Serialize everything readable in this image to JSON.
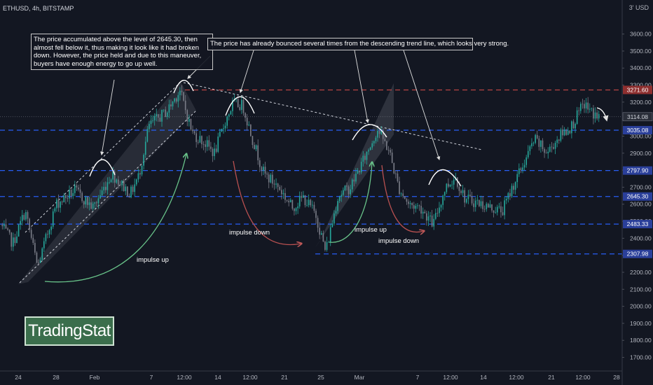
{
  "header": {
    "symbol_line": "ETHUSD, 4h, BITSTAMP",
    "currency_label": "3' USD"
  },
  "brand": {
    "logo_text": "TradingStat"
  },
  "annotations": {
    "note_1": "The price accumulated above the level of 2645.30, then almost fell below it, thus making it look like it had broken down. However, the price held and due to this maneuver, buyers have enough energy to go up well.",
    "note_2": "The price has already bounced several times from the descending trend line, which looks very strong.",
    "impulse_labels": [
      {
        "id": "impulse-up-1",
        "text": "impulse up"
      },
      {
        "id": "impulse-down-1",
        "text": "impulse down"
      },
      {
        "id": "impulse-up-2",
        "text": "impulse up"
      },
      {
        "id": "impulse-down-2",
        "text": "impulse down"
      }
    ]
  },
  "chart_data": {
    "type": "candlestick",
    "instrument": "ETHUSD",
    "timeframe": "4h",
    "exchange": "BITSTAMP",
    "y_axis": {
      "ylim": [
        1620,
        3800
      ],
      "ticks": [
        1700,
        1800,
        1900,
        2000,
        2100,
        2200,
        2300,
        2400,
        2500,
        2600,
        2700,
        2800,
        2900,
        3000,
        3100,
        3200,
        3300,
        3400,
        3500,
        3600
      ],
      "tick_labels": [
        "1700.00",
        "1800.00",
        "1900.00",
        "2000.00",
        "2100.00",
        "2200.00",
        "2300.00",
        "2400.00",
        "2500.00",
        "2600.00",
        "2700.00",
        "2800.00",
        "2900.00",
        "3000.00",
        "3100.00",
        "3200.00",
        "3300.00",
        "3400.00",
        "3500.00",
        "3600.00"
      ]
    },
    "x_axis": {
      "tick_labels": [
        "24",
        "28",
        "Feb",
        "7",
        "12:00",
        "14",
        "12:00",
        "21",
        "25",
        "Mar",
        "7",
        "12:00",
        "14",
        "12:00",
        "21",
        "12:00",
        "28"
      ]
    },
    "levels": [
      {
        "value": 3271.6,
        "label": "3271.60",
        "color": "#ef5350"
      },
      {
        "value": 3035.08,
        "label": "3035.08",
        "color": "#2962ff"
      },
      {
        "value": 2797.9,
        "label": "2797.90",
        "color": "#2962ff"
      },
      {
        "value": 2645.3,
        "label": "2645.30",
        "color": "#2962ff"
      },
      {
        "value": 2483.33,
        "label": "2483.33",
        "color": "#2962ff"
      },
      {
        "value": 2307.98,
        "label": "2307.98",
        "color": "#2962ff"
      }
    ],
    "last_price": {
      "value": 3114.08,
      "label": "3114.08"
    },
    "price_path": [
      {
        "t": 0.0,
        "p": 2480
      },
      {
        "t": 1.0,
        "p": 2370
      },
      {
        "t": 2.0,
        "p": 2560
      },
      {
        "t": 3.0,
        "p": 2230
      },
      {
        "t": 4.5,
        "p": 2600
      },
      {
        "t": 6.0,
        "p": 2680
      },
      {
        "t": 7.5,
        "p": 2580
      },
      {
        "t": 9.0,
        "p": 2780
      },
      {
        "t": 10.5,
        "p": 2660
      },
      {
        "t": 11.2,
        "p": 2770
      },
      {
        "t": 12.0,
        "p": 3060
      },
      {
        "t": 13.5,
        "p": 3150
      },
      {
        "t": 14.5,
        "p": 3270
      },
      {
        "t": 15.5,
        "p": 3020
      },
      {
        "t": 16.5,
        "p": 2960
      },
      {
        "t": 17.3,
        "p": 2900
      },
      {
        "t": 18.2,
        "p": 3090
      },
      {
        "t": 18.8,
        "p": 3190
      },
      {
        "t": 19.6,
        "p": 3180
      },
      {
        "t": 20.4,
        "p": 2980
      },
      {
        "t": 21.3,
        "p": 2780
      },
      {
        "t": 22.5,
        "p": 2700
      },
      {
        "t": 23.6,
        "p": 2580
      },
      {
        "t": 24.5,
        "p": 2640
      },
      {
        "t": 25.5,
        "p": 2540
      },
      {
        "t": 26.3,
        "p": 2320
      },
      {
        "t": 27.3,
        "p": 2650
      },
      {
        "t": 28.3,
        "p": 2700
      },
      {
        "t": 29.5,
        "p": 2880
      },
      {
        "t": 30.5,
        "p": 3040
      },
      {
        "t": 31.4,
        "p": 2920
      },
      {
        "t": 32.2,
        "p": 2700
      },
      {
        "t": 33.0,
        "p": 2600
      },
      {
        "t": 34.0,
        "p": 2580
      },
      {
        "t": 35.0,
        "p": 2480
      },
      {
        "t": 36.0,
        "p": 2700
      },
      {
        "t": 36.8,
        "p": 2760
      },
      {
        "t": 37.6,
        "p": 2630
      },
      {
        "t": 38.6,
        "p": 2610
      },
      {
        "t": 39.6,
        "p": 2580
      },
      {
        "t": 40.6,
        "p": 2560
      },
      {
        "t": 41.4,
        "p": 2700
      },
      {
        "t": 42.2,
        "p": 2820
      },
      {
        "t": 43.2,
        "p": 2980
      },
      {
        "t": 44.2,
        "p": 2900
      },
      {
        "t": 45.2,
        "p": 3000
      },
      {
        "t": 46.2,
        "p": 3060
      },
      {
        "t": 47.2,
        "p": 3190
      },
      {
        "t": 47.8,
        "p": 3140
      },
      {
        "t": 48.4,
        "p": 3110
      }
    ],
    "series_color_up": "#26a69a",
    "series_color_down": "#787b86"
  }
}
